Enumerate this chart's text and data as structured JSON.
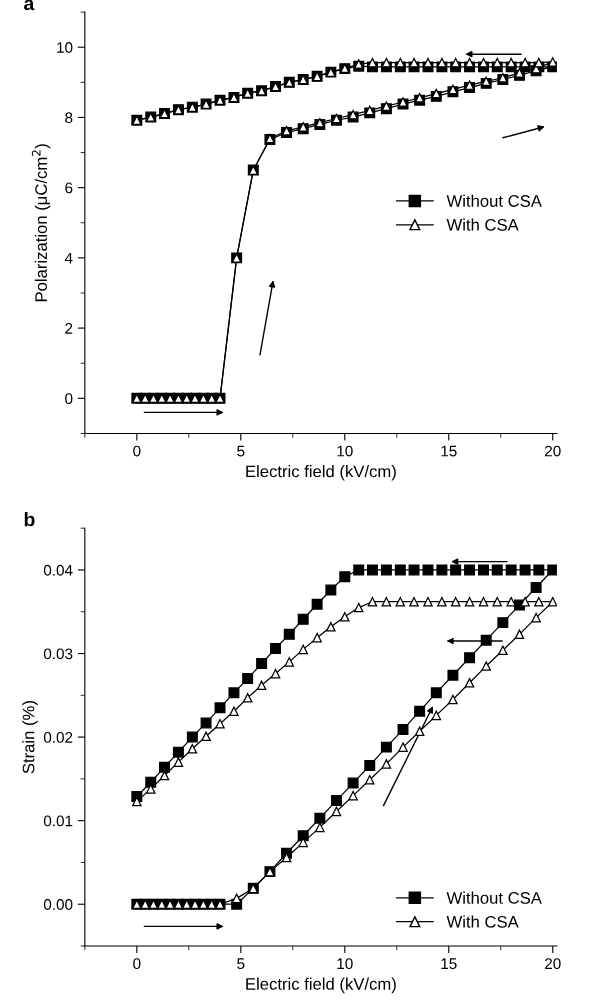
{
  "chart_data": [
    {
      "type": "line",
      "title": "a",
      "xlabel": "Electric field (kV/cm)",
      "ylabel": "Polarization (μC/cm$^{2}$)",
      "xlim": [
        -2.5,
        20.2
      ],
      "ylim": [
        -1,
        11
      ],
      "xticks": [
        0,
        5,
        10,
        15,
        20
      ],
      "yticks": [
        0,
        2,
        4,
        6,
        8,
        10
      ],
      "grid": false,
      "legend": "center right",
      "line_style": "solid",
      "series": [
        {
          "name": "Without CSA",
          "color": "#000000",
          "marker": "square",
          "x": [
            0,
            0.4,
            0.8,
            1.2,
            1.6,
            2.0,
            2.4,
            2.8,
            3.2,
            3.6,
            4.0,
            4.8,
            5.6,
            6.4,
            7.2,
            8.0,
            8.8,
            9.6,
            10.4,
            11.2,
            12.0,
            12.8,
            13.6,
            14.4,
            15.2,
            16.0,
            16.8,
            17.6,
            18.4,
            19.2,
            20.0,
            19.33,
            18.67,
            18.0,
            17.33,
            16.67,
            16.0,
            15.33,
            14.67,
            14.0,
            13.33,
            12.67,
            12.0,
            11.33,
            10.67,
            10.0,
            9.33,
            8.67,
            8.0,
            7.33,
            6.67,
            6.0,
            5.33,
            4.67,
            4.0,
            3.33,
            2.67,
            2.0,
            1.33,
            0.67,
            0
          ],
          "values": [
            0,
            0,
            0,
            0,
            0,
            0,
            0,
            0,
            0,
            0,
            0,
            4.0,
            6.5,
            7.37,
            7.57,
            7.68,
            7.8,
            7.92,
            8.01,
            8.13,
            8.25,
            8.38,
            8.49,
            8.6,
            8.73,
            8.85,
            8.97,
            9.08,
            9.2,
            9.33,
            9.44,
            9.44,
            9.44,
            9.44,
            9.44,
            9.44,
            9.44,
            9.44,
            9.44,
            9.44,
            9.44,
            9.44,
            9.44,
            9.44,
            9.46,
            9.39,
            9.29,
            9.17,
            9.08,
            9.0,
            8.88,
            8.76,
            8.69,
            8.57,
            8.49,
            8.38,
            8.29,
            8.22,
            8.11,
            8.01,
            7.92
          ]
        },
        {
          "name": "With CSA",
          "color": "#000000",
          "marker": "triangle",
          "x": [
            0,
            0.4,
            0.8,
            1.2,
            1.6,
            2.0,
            2.4,
            2.8,
            3.2,
            3.6,
            4.0,
            4.8,
            5.6,
            6.4,
            7.2,
            8.0,
            8.8,
            9.6,
            10.4,
            11.2,
            12.0,
            12.8,
            13.6,
            14.4,
            15.2,
            16.0,
            16.8,
            17.6,
            18.4,
            19.2,
            20.0,
            19.33,
            18.67,
            18.0,
            17.33,
            16.67,
            16.0,
            15.33,
            14.67,
            14.0,
            13.33,
            12.67,
            12.0,
            11.33,
            10.67,
            10.0,
            9.33,
            8.67,
            8.0,
            7.33,
            6.67,
            6.0,
            5.33,
            4.67,
            4.0,
            3.33,
            2.67,
            2.0,
            1.33,
            0.67,
            0
          ],
          "values": [
            0,
            0,
            0,
            0,
            0,
            0,
            0,
            0,
            0,
            0,
            0,
            4.0,
            6.5,
            7.4,
            7.62,
            7.73,
            7.85,
            7.97,
            8.08,
            8.2,
            8.32,
            8.44,
            8.56,
            8.68,
            8.8,
            8.92,
            9.03,
            9.13,
            9.27,
            9.39,
            9.58,
            9.56,
            9.56,
            9.56,
            9.56,
            9.56,
            9.56,
            9.56,
            9.56,
            9.56,
            9.56,
            9.56,
            9.56,
            9.56,
            9.52,
            9.4,
            9.29,
            9.17,
            9.08,
            9.0,
            8.88,
            8.76,
            8.69,
            8.57,
            8.49,
            8.38,
            8.29,
            8.22,
            8.11,
            8.01,
            7.92
          ]
        }
      ]
    },
    {
      "type": "line",
      "title": "b",
      "xlabel": "Electric field (kV/cm)",
      "ylabel": "Strain (%)",
      "xlim": [
        -2.5,
        20.2
      ],
      "ylim": [
        -0.005,
        0.045
      ],
      "xticks": [
        0,
        5,
        10,
        15,
        20
      ],
      "yticks": [
        {
          "value": 0,
          "label": "0.00"
        },
        {
          "value": 0.01,
          "label": "0.01"
        },
        {
          "value": 0.02,
          "label": "0.02"
        },
        {
          "value": 0.03,
          "label": "0.03"
        },
        {
          "value": 0.04,
          "label": "0.04"
        }
      ],
      "grid": false,
      "legend": "lower right",
      "line_style": "solid",
      "series": [
        {
          "name": "Without CSA",
          "color": "#000000",
          "marker": "square",
          "x": [
            0,
            0.4,
            0.8,
            1.2,
            1.6,
            2.0,
            2.4,
            2.8,
            3.2,
            3.6,
            4.0,
            4.8,
            5.6,
            6.4,
            7.2,
            8.0,
            8.8,
            9.6,
            10.4,
            11.2,
            12.0,
            12.8,
            13.6,
            14.4,
            15.2,
            16.0,
            16.8,
            17.6,
            18.4,
            19.2,
            20.0,
            19.33,
            18.67,
            18.0,
            17.33,
            16.67,
            16.0,
            15.33,
            14.67,
            14.0,
            13.33,
            12.67,
            12.0,
            11.33,
            10.67,
            10.0,
            9.33,
            8.67,
            8.0,
            7.33,
            6.67,
            6.0,
            5.33,
            4.67,
            4.0,
            3.33,
            2.67,
            2.0,
            1.33,
            0.67,
            0
          ],
          "values": [
            0,
            0,
            0,
            0,
            0,
            0,
            0,
            0,
            0,
            0,
            0,
            0,
            0.0019,
            0.0039,
            0.0061,
            0.0082,
            0.0103,
            0.0124,
            0.0145,
            0.0166,
            0.0188,
            0.0209,
            0.0231,
            0.0253,
            0.0274,
            0.0295,
            0.0316,
            0.0337,
            0.0358,
            0.0379,
            0.04,
            0.04,
            0.04,
            0.04,
            0.04,
            0.04,
            0.04,
            0.04,
            0.04,
            0.04,
            0.04,
            0.04,
            0.04,
            0.04,
            0.04,
            0.0392,
            0.0376,
            0.0359,
            0.0341,
            0.0323,
            0.0306,
            0.0288,
            0.027,
            0.0253,
            0.0235,
            0.0217,
            0.02,
            0.0182,
            0.0164,
            0.0146,
            0.0129
          ]
        },
        {
          "name": "With CSA",
          "color": "#000000",
          "marker": "triangle",
          "x": [
            0,
            0.4,
            0.8,
            1.2,
            1.6,
            2.0,
            2.4,
            2.8,
            3.2,
            3.6,
            4.0,
            4.8,
            5.6,
            6.4,
            7.2,
            8.0,
            8.8,
            9.6,
            10.4,
            11.2,
            12.0,
            12.8,
            13.6,
            14.4,
            15.2,
            16.0,
            16.8,
            17.6,
            18.4,
            19.2,
            20.0,
            19.33,
            18.67,
            18.0,
            17.33,
            16.67,
            16.0,
            15.33,
            14.67,
            14.0,
            13.33,
            12.67,
            12.0,
            11.33,
            10.67,
            10.0,
            9.33,
            8.67,
            8.0,
            7.33,
            6.67,
            6.0,
            5.33,
            4.67,
            4.0,
            3.33,
            2.67,
            2.0,
            1.33,
            0.67,
            0
          ],
          "values": [
            0,
            0,
            0,
            0,
            0,
            0,
            0,
            0,
            0,
            0,
            0,
            0.0007,
            0.0019,
            0.0039,
            0.0056,
            0.0074,
            0.0092,
            0.0111,
            0.013,
            0.0149,
            0.0168,
            0.0188,
            0.0207,
            0.0226,
            0.0245,
            0.0265,
            0.0285,
            0.0304,
            0.0323,
            0.0343,
            0.0362,
            0.0362,
            0.0362,
            0.0362,
            0.0362,
            0.0362,
            0.0362,
            0.0362,
            0.0362,
            0.0362,
            0.0362,
            0.0362,
            0.0362,
            0.0362,
            0.0355,
            0.0344,
            0.0332,
            0.0319,
            0.0305,
            0.029,
            0.0276,
            0.0262,
            0.0247,
            0.0231,
            0.0216,
            0.0201,
            0.0186,
            0.017,
            0.0154,
            0.0138,
            0.0123
          ]
        }
      ]
    }
  ]
}
